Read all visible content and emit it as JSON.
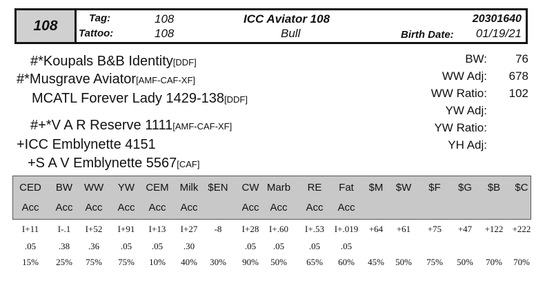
{
  "header": {
    "number": "108",
    "tag_label": "Tag:",
    "tag_value": "108",
    "tattoo_label": "Tattoo:",
    "tattoo_value": "108",
    "name": "ICC Aviator 108",
    "sex": "Bull",
    "reg_number": "20301640",
    "birth_label": "Birth Date:",
    "birth_date": "01/19/21"
  },
  "pedigree": {
    "sire_sire": "#*Koupals B&B Identity",
    "sire_sire_tag": "[DDF]",
    "sire": "#*Musgrave Aviator",
    "sire_tag": "[AMF-CAF-XF]",
    "sire_dam": "MCATL Forever Lady 1429-138",
    "sire_dam_tag": "[DDF]",
    "dam_sire": "#+*V A R Reserve 1111",
    "dam_sire_tag": "[AMF-CAF-XF]",
    "dam": "+ICC Emblynette 4151",
    "dam_dam": "+S A V Emblynette 5567",
    "dam_dam_tag": "[CAF]"
  },
  "stats": [
    {
      "label": "BW:",
      "value": "76"
    },
    {
      "label": "WW Adj:",
      "value": "678"
    },
    {
      "label": "WW Ratio:",
      "value": "102"
    },
    {
      "label": "YW Adj:",
      "value": ""
    },
    {
      "label": "YW Ratio:",
      "value": ""
    },
    {
      "label": "YH Adj:",
      "value": ""
    }
  ],
  "epd": {
    "columns": [
      "CED",
      "BW",
      "WW",
      "YW",
      "CEM",
      "Milk",
      "$EN",
      "CW",
      "Marb",
      "RE",
      "Fat",
      "$M",
      "$W",
      "$F",
      "$G",
      "$B",
      "$C"
    ],
    "acc_header": [
      "Acc",
      "Acc",
      "Acc",
      "Acc",
      "Acc",
      "Acc",
      "",
      "Acc",
      "Acc",
      "Acc",
      "Acc",
      "",
      "",
      "",
      "",
      "",
      ""
    ],
    "values": [
      "I+11",
      "I-.1",
      "I+52",
      "I+91",
      "I+13",
      "I+27",
      "-8",
      "I+28",
      "I+.60",
      "I+.53",
      "I+.019",
      "+64",
      "+61",
      "+75",
      "+47",
      "+122",
      "+222"
    ],
    "acc": [
      ".05",
      ".38",
      ".36",
      ".05",
      ".05",
      ".30",
      "",
      ".05",
      ".05",
      ".05",
      ".05",
      "",
      "",
      "",
      "",
      "",
      ""
    ],
    "pct": [
      "15%",
      "25%",
      "75%",
      "75%",
      "10%",
      "40%",
      "30%",
      "90%",
      "50%",
      "65%",
      "60%",
      "45%",
      "50%",
      "75%",
      "50%",
      "70%",
      "70%"
    ]
  }
}
